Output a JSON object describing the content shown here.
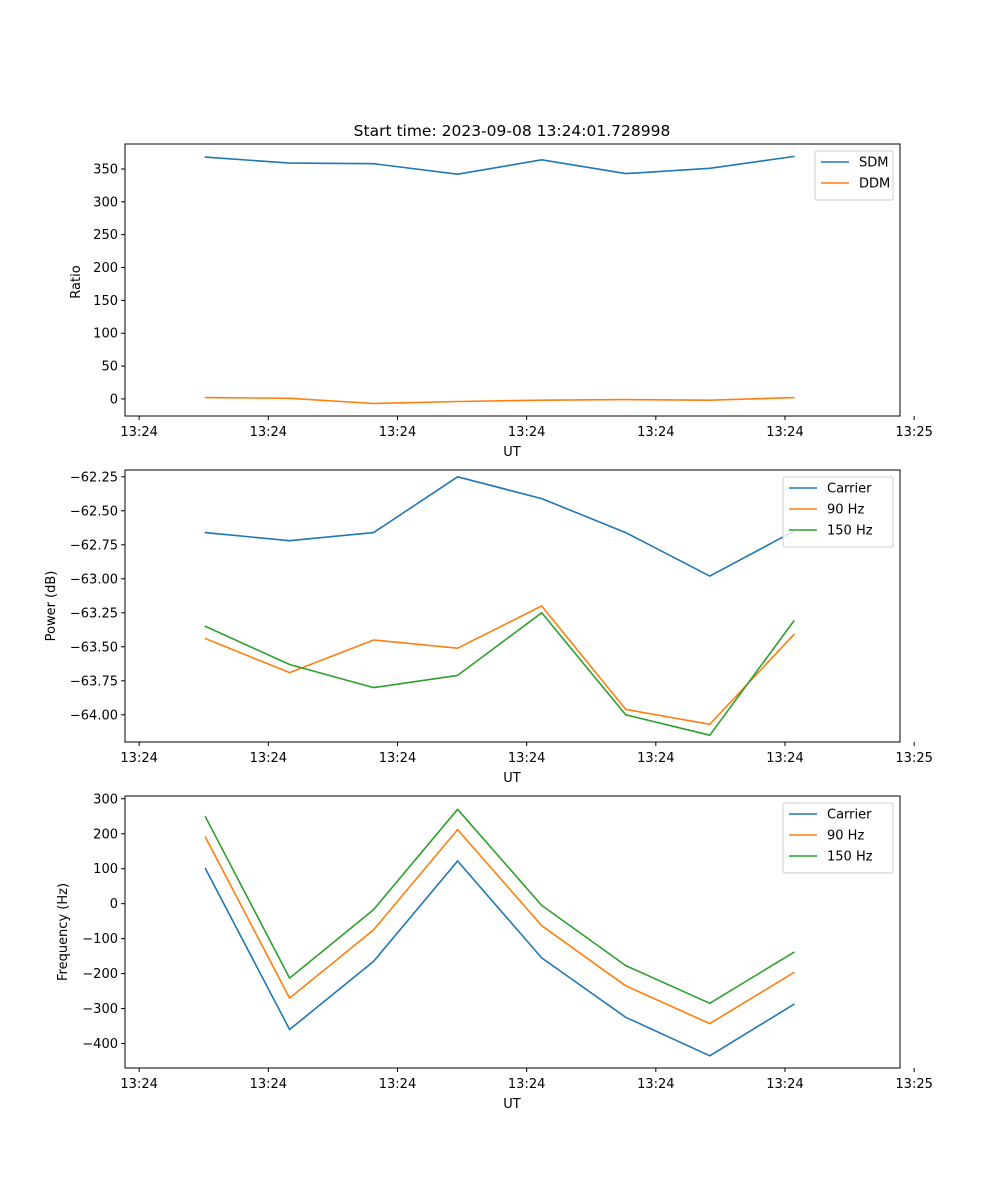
{
  "colors": {
    "c0": "#1f77b4",
    "c1": "#ff7f0e",
    "c2": "#2ca02c"
  },
  "chart_data": [
    {
      "type": "line",
      "title": "Start time: 2023-09-08 13:24:01.728998",
      "xlabel": "UT",
      "ylabel": "Ratio",
      "legend_position": "top-right",
      "xlim": [
        -0.16,
        8.6
      ],
      "x": [
        0.75,
        1.7,
        2.65,
        3.6,
        4.55,
        5.5,
        6.45,
        7.4
      ],
      "x_ticks": [
        0,
        1.46,
        2.92,
        4.38,
        5.84,
        7.3,
        8.76
      ],
      "x_tick_labels": [
        "13:24",
        "13:24",
        "13:24",
        "13:24",
        "13:24",
        "13:24",
        "13:25"
      ],
      "ylim": [
        -26,
        388
      ],
      "y_ticks": [
        0,
        50,
        100,
        150,
        200,
        250,
        300,
        350
      ],
      "y_tick_labels": [
        "0",
        "50",
        "100",
        "150",
        "200",
        "250",
        "300",
        "350"
      ],
      "series": [
        {
          "name": "SDM",
          "color": "#1f77b4",
          "values": [
            368,
            359,
            358,
            342,
            364,
            343,
            351,
            369
          ]
        },
        {
          "name": "DDM",
          "color": "#ff7f0e",
          "values": [
            2,
            1,
            -7,
            -4,
            -2,
            -1,
            -2,
            2
          ]
        }
      ]
    },
    {
      "type": "line",
      "title": "",
      "xlabel": "UT",
      "ylabel": "Power (dB)",
      "legend_position": "top-right",
      "xlim": [
        -0.16,
        8.6
      ],
      "x": [
        0.75,
        1.7,
        2.65,
        3.6,
        4.55,
        5.5,
        6.45,
        7.4
      ],
      "x_ticks": [
        0,
        1.46,
        2.92,
        4.38,
        5.84,
        7.3,
        8.76
      ],
      "x_tick_labels": [
        "13:24",
        "13:24",
        "13:24",
        "13:24",
        "13:24",
        "13:24",
        "13:25"
      ],
      "ylim": [
        -64.2,
        -62.2
      ],
      "y_ticks": [
        -64.0,
        -63.75,
        -63.5,
        -63.25,
        -63.0,
        -62.75,
        -62.5,
        -62.25
      ],
      "y_tick_labels": [
        "−64.00",
        "−63.75",
        "−63.50",
        "−63.25",
        "−63.00",
        "−62.75",
        "−62.50",
        "−62.25"
      ],
      "series": [
        {
          "name": "Carrier",
          "color": "#1f77b4",
          "values": [
            -62.66,
            -62.72,
            -62.66,
            -62.25,
            -62.41,
            -62.66,
            -62.98,
            -62.65
          ]
        },
        {
          "name": "90 Hz",
          "color": "#ff7f0e",
          "values": [
            -63.44,
            -63.69,
            -63.45,
            -63.51,
            -63.2,
            -63.96,
            -64.07,
            -63.41
          ]
        },
        {
          "name": "150 Hz",
          "color": "#2ca02c",
          "values": [
            -63.35,
            -63.63,
            -63.8,
            -63.71,
            -63.25,
            -64.0,
            -64.15,
            -63.31
          ]
        }
      ]
    },
    {
      "type": "line",
      "title": "",
      "xlabel": "UT",
      "ylabel": "Frequency (Hz)",
      "legend_position": "top-right",
      "xlim": [
        -0.16,
        8.6
      ],
      "x": [
        0.75,
        1.7,
        2.65,
        3.6,
        4.55,
        5.5,
        6.45,
        7.4
      ],
      "x_ticks": [
        0,
        1.46,
        2.92,
        4.38,
        5.84,
        7.3,
        8.76
      ],
      "x_tick_labels": [
        "13:24",
        "13:24",
        "13:24",
        "13:24",
        "13:24",
        "13:24",
        "13:25"
      ],
      "ylim": [
        -470,
        308
      ],
      "y_ticks": [
        -400,
        -300,
        -200,
        -100,
        0,
        100,
        200,
        300
      ],
      "y_tick_labels": [
        "−400",
        "−300",
        "−200",
        "−100",
        "0",
        "100",
        "200",
        "300"
      ],
      "series": [
        {
          "name": "Carrier",
          "color": "#1f77b4",
          "values": [
            100,
            -360,
            -165,
            122,
            -155,
            -325,
            -435,
            -288
          ]
        },
        {
          "name": "90 Hz",
          "color": "#ff7f0e",
          "values": [
            190,
            -270,
            -75,
            212,
            -63,
            -235,
            -343,
            -197
          ]
        },
        {
          "name": "150 Hz",
          "color": "#2ca02c",
          "values": [
            248,
            -213,
            -17,
            270,
            -5,
            -177,
            -285,
            -139
          ]
        }
      ]
    }
  ]
}
